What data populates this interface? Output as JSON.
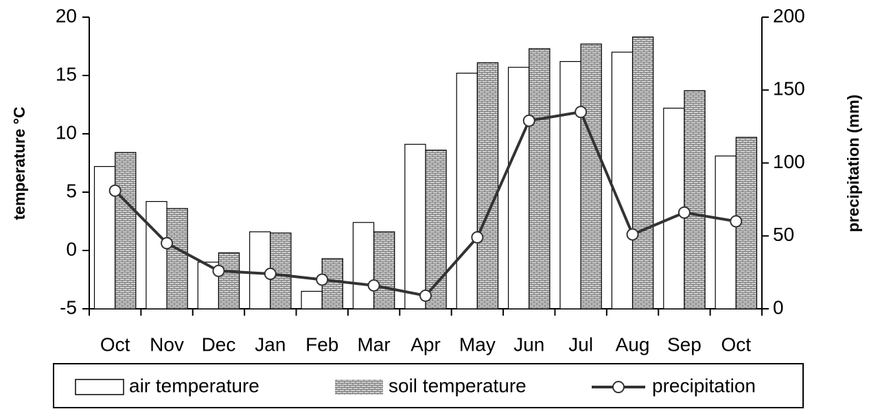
{
  "chart_data": {
    "type": "bar-line",
    "categories": [
      "Oct",
      "Nov",
      "Dec",
      "Jan",
      "Feb",
      "Mar",
      "Apr",
      "May",
      "Jun",
      "Jul",
      "Aug",
      "Sep",
      "Oct"
    ],
    "y_label": "temperature °C",
    "y2_label": "precipitation (mm)",
    "ylim": [
      -5,
      20
    ],
    "yticks": [
      -5,
      0,
      5,
      10,
      15,
      20
    ],
    "y2lim": [
      0,
      200
    ],
    "y2ticks": [
      0,
      50,
      100,
      150,
      200
    ],
    "series": [
      {
        "name": "air temperature",
        "type": "bar",
        "color": "#ffffff",
        "values": [
          7.2,
          4.2,
          -1.0,
          1.6,
          -3.5,
          2.4,
          9.1,
          15.2,
          15.7,
          16.2,
          17.0,
          12.2,
          8.1
        ]
      },
      {
        "name": "soil temperature",
        "type": "bar",
        "color": "#b8b8b8",
        "values": [
          8.4,
          3.6,
          -0.2,
          1.5,
          -0.7,
          1.6,
          8.6,
          16.1,
          17.3,
          17.7,
          18.3,
          13.7,
          9.7
        ]
      },
      {
        "name": "precipitation",
        "type": "line",
        "axis": "y2",
        "color": "#333333",
        "values": [
          81,
          45,
          26,
          24,
          20,
          16,
          9,
          49,
          129,
          135,
          51,
          66,
          60
        ]
      }
    ]
  }
}
